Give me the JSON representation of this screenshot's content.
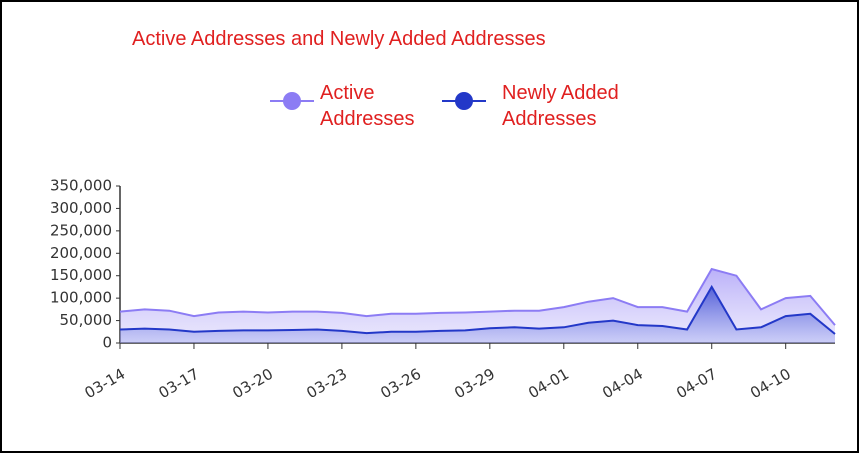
{
  "chart_data": {
    "type": "area",
    "title": "Active Addresses and Newly Added Addresses",
    "categories": [
      "03-14",
      null,
      null,
      "03-17",
      null,
      null,
      "03-20",
      null,
      null,
      "03-23",
      null,
      null,
      "03-26",
      null,
      null,
      "03-29",
      null,
      null,
      "04-01",
      null,
      null,
      "04-04",
      null,
      null,
      "04-07",
      null,
      null,
      "04-10",
      null,
      null
    ],
    "series": [
      {
        "name": "Active Addresses",
        "color": "#8c7cf4",
        "values": [
          70000,
          75000,
          72000,
          60000,
          68000,
          70000,
          68000,
          70000,
          70000,
          67000,
          60000,
          65000,
          65000,
          67000,
          68000,
          70000,
          72000,
          72000,
          80000,
          92000,
          100000,
          80000,
          80000,
          70000,
          165000,
          150000,
          75000,
          100000,
          105000,
          40000
        ]
      },
      {
        "name": "Newly Added Addresses",
        "color": "#2338c8",
        "values": [
          30000,
          32000,
          30000,
          25000,
          27000,
          28000,
          28000,
          29000,
          30000,
          27000,
          22000,
          25000,
          25000,
          27000,
          28000,
          33000,
          35000,
          32000,
          35000,
          45000,
          50000,
          40000,
          38000,
          30000,
          125000,
          30000,
          35000,
          60000,
          65000,
          20000
        ]
      }
    ],
    "ylim": [
      0,
      350000
    ],
    "yticks": [
      0,
      {
        "value": 50000,
        "label": "50,000"
      },
      {
        "value": 100000,
        "label": "100,000"
      },
      {
        "value": 150000,
        "label": "150,000"
      },
      {
        "value": 200000,
        "label": "200,000"
      },
      {
        "value": 250000,
        "label": "250,000"
      },
      {
        "value": 300000,
        "label": "300,000"
      },
      {
        "value": 350000,
        "label": "350,000"
      }
    ]
  }
}
